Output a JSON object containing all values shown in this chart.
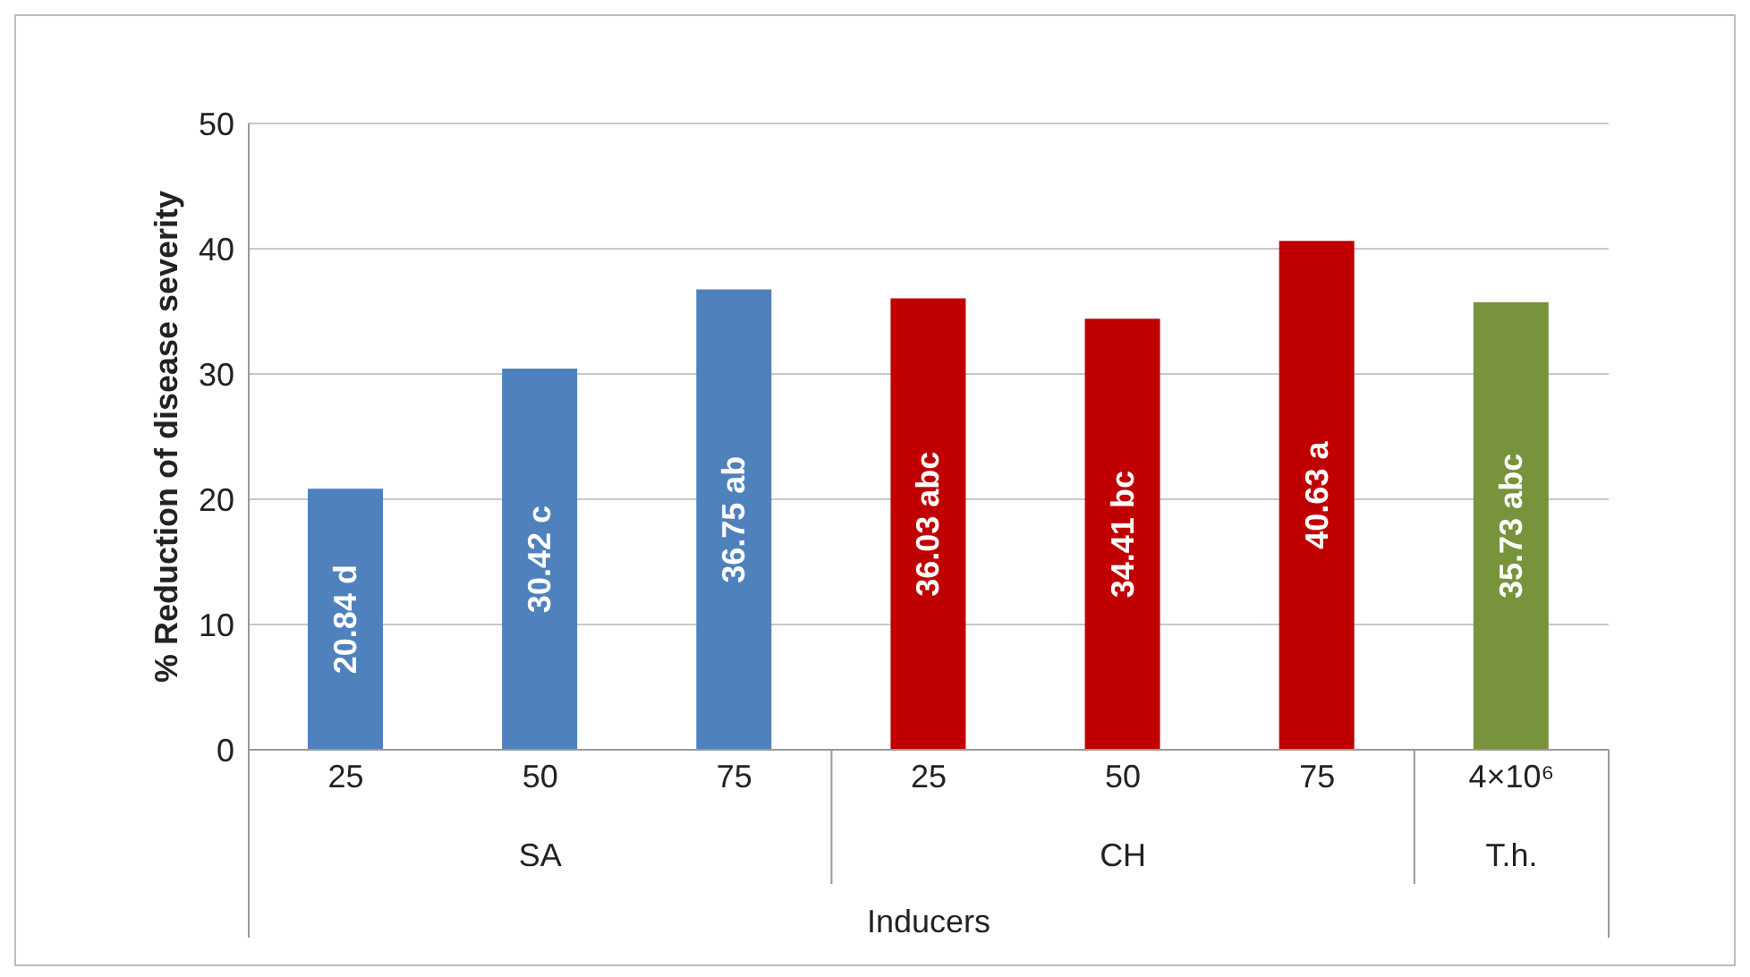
{
  "chart_data": {
    "type": "bar",
    "ylabel": "% Reduction of disease severity",
    "xlabel": "Inducers",
    "categories": [
      "25",
      "50",
      "75",
      "25",
      "50",
      "75",
      "4×10⁶"
    ],
    "values": [
      20.84,
      30.42,
      36.75,
      36.03,
      34.41,
      40.63,
      35.73
    ],
    "value_labels": [
      "20.84 d",
      "30.42 c",
      "36.75 ab",
      "36.03 abc",
      "34.41 bc",
      "40.63 a",
      "35.73 abc"
    ],
    "colors": [
      "#4f81bd",
      "#4f81bd",
      "#4f81bd",
      "#c00000",
      "#c00000",
      "#c00000",
      "#77933c"
    ],
    "annotations": [
      "SA",
      "CH",
      "T.h."
    ],
    "ylim": [
      0,
      50
    ],
    "yticks": [
      0,
      10,
      20,
      30,
      40,
      50
    ],
    "grid": "y"
  }
}
